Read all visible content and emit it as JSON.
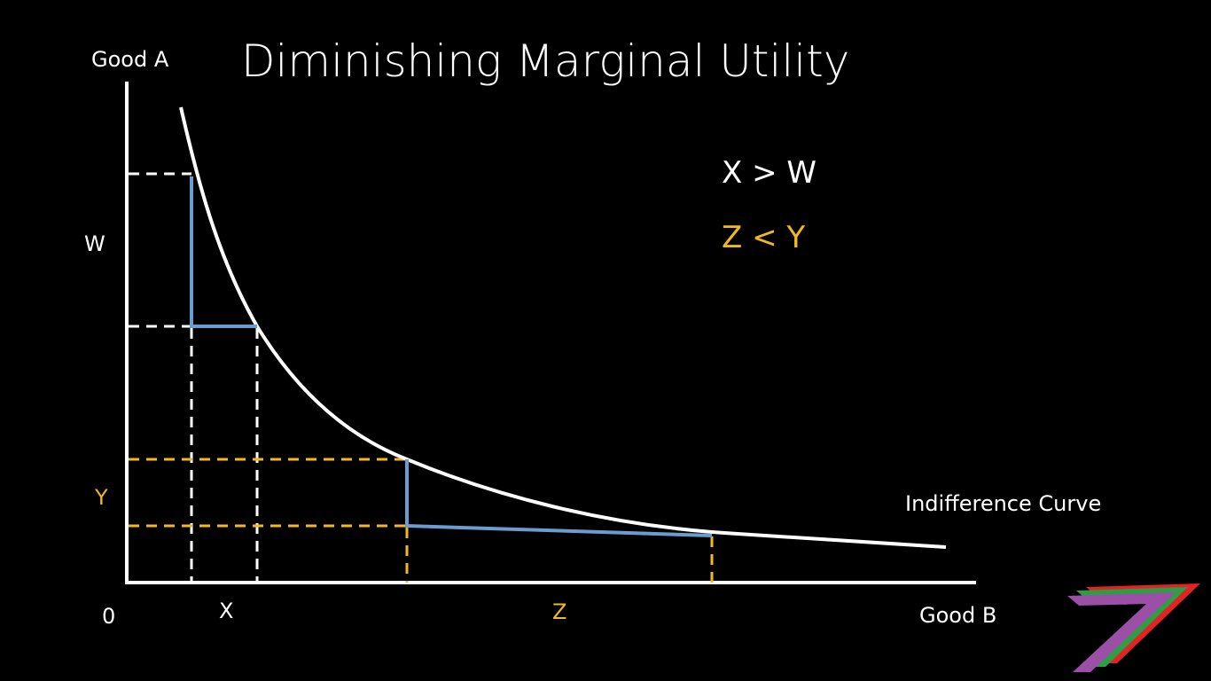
{
  "slide": {
    "title": "Diminishing Marginal Utility"
  },
  "axes": {
    "y_label": "Good A",
    "x_label": "Good B",
    "origin_label": "0"
  },
  "curve": {
    "label": "Indifference Curve"
  },
  "segments": {
    "w_label": "W",
    "x_label": "X",
    "y_label": "Y",
    "z_label": "Z"
  },
  "relations": {
    "first": "X > W",
    "second": "Z < Y"
  },
  "colors": {
    "background": "#000000",
    "foreground": "#ffffff",
    "accent_yellow": "#f2b81f",
    "step_blue": "#6a9bd1",
    "logo_purple": "#9b4fa6",
    "logo_green": "#2e9e46",
    "logo_red": "#e02424"
  }
}
